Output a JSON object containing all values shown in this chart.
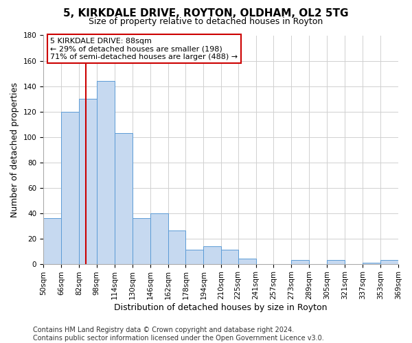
{
  "title": "5, KIRKDALE DRIVE, ROYTON, OLDHAM, OL2 5TG",
  "subtitle": "Size of property relative to detached houses in Royton",
  "xlabel": "Distribution of detached houses by size in Royton",
  "ylabel": "Number of detached properties",
  "bar_edges": [
    50,
    66,
    82,
    98,
    114,
    130,
    146,
    162,
    178,
    194,
    210,
    225,
    241,
    257,
    273,
    289,
    305,
    321,
    337,
    353,
    369
  ],
  "bar_heights": [
    36,
    120,
    130,
    144,
    103,
    36,
    40,
    26,
    11,
    14,
    11,
    4,
    0,
    0,
    3,
    0,
    3,
    0,
    1,
    3
  ],
  "bar_color": "#c6d9f0",
  "bar_edgecolor": "#5b9bd5",
  "vline_x": 88,
  "vline_color": "#cc0000",
  "ylim": [
    0,
    180
  ],
  "yticks": [
    0,
    20,
    40,
    60,
    80,
    100,
    120,
    140,
    160,
    180
  ],
  "tick_labels": [
    "50sqm",
    "66sqm",
    "82sqm",
    "98sqm",
    "114sqm",
    "130sqm",
    "146sqm",
    "162sqm",
    "178sqm",
    "194sqm",
    "210sqm",
    "225sqm",
    "241sqm",
    "257sqm",
    "273sqm",
    "289sqm",
    "305sqm",
    "321sqm",
    "337sqm",
    "353sqm",
    "369sqm"
  ],
  "annotation_title": "5 KIRKDALE DRIVE: 88sqm",
  "annotation_line1": "← 29% of detached houses are smaller (198)",
  "annotation_line2": "71% of semi-detached houses are larger (488) →",
  "footer_line1": "Contains HM Land Registry data © Crown copyright and database right 2024.",
  "footer_line2": "Contains public sector information licensed under the Open Government Licence v3.0.",
  "background_color": "#ffffff",
  "grid_color": "#d0d0d0",
  "title_fontsize": 11,
  "subtitle_fontsize": 9,
  "axis_label_fontsize": 9,
  "tick_fontsize": 7.5,
  "annotation_fontsize": 8,
  "footer_fontsize": 7
}
